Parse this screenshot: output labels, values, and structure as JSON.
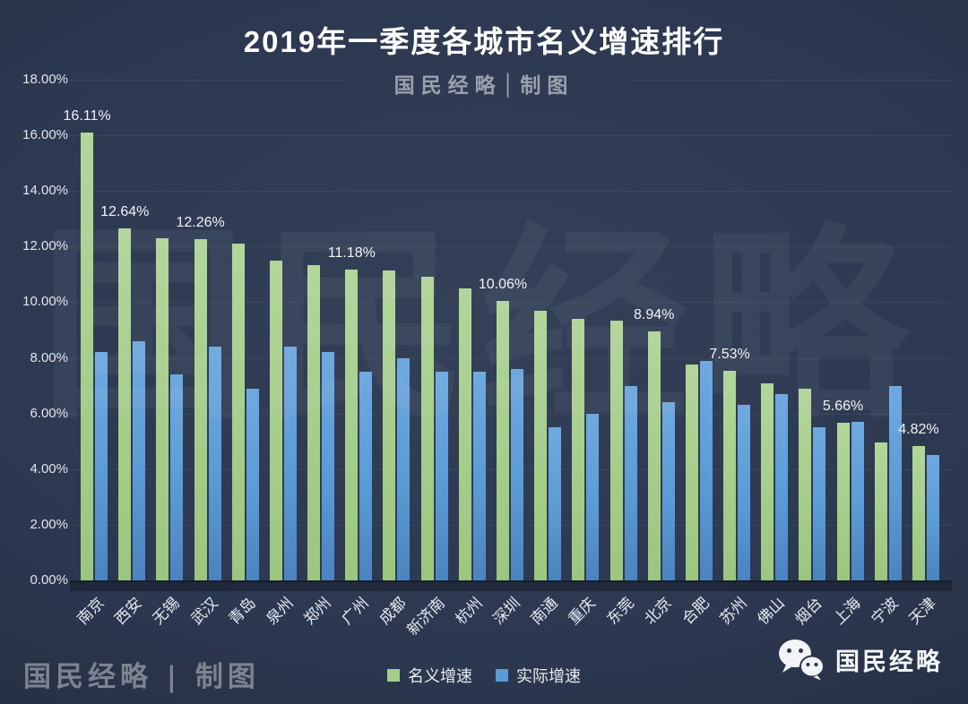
{
  "title": "2019年一季度各城市名义增速排行",
  "watermark_top": "国民经略│制图",
  "watermark_big": "国民经略",
  "watermark_bottom_left": "国民经略 | 制图",
  "brand": {
    "name": "国民经略",
    "icon": "wechat-icon"
  },
  "colors": {
    "background": "#2c3850",
    "nominal_green": "#a6ce8b",
    "actual_blue": "#5b9bd5",
    "gridline": "#3c4859",
    "text": "#e6eaf0"
  },
  "chart_data": {
    "type": "bar",
    "title": "2019年一季度各城市名义增速排行",
    "categories": [
      "南京",
      "西安",
      "无锡",
      "武汉",
      "青岛",
      "泉州",
      "郑州",
      "广州",
      "成都",
      "新济南",
      "杭州",
      "深圳",
      "南通",
      "重庆",
      "东莞",
      "北京",
      "合肥",
      "苏州",
      "佛山",
      "烟台",
      "上海",
      "宁波",
      "天津"
    ],
    "series": [
      {
        "name": "名义增速",
        "color": "#a6ce8b",
        "values": [
          16.11,
          12.64,
          12.3,
          12.26,
          12.1,
          11.5,
          11.35,
          11.18,
          11.15,
          10.9,
          10.5,
          10.06,
          9.7,
          9.4,
          9.35,
          8.94,
          7.75,
          7.53,
          7.1,
          6.9,
          5.66,
          4.95,
          4.82
        ]
      },
      {
        "name": "实际增速",
        "color": "#5b9bd5",
        "values": [
          8.2,
          8.6,
          7.4,
          8.4,
          6.9,
          8.4,
          8.2,
          7.5,
          8.0,
          7.5,
          7.5,
          7.6,
          5.5,
          6.0,
          7.0,
          6.4,
          7.9,
          6.3,
          6.7,
          5.5,
          5.7,
          7.0,
          4.5
        ]
      }
    ],
    "value_labels": [
      {
        "index": 0,
        "text": "16.11%"
      },
      {
        "index": 1,
        "text": "12.64%"
      },
      {
        "index": 3,
        "text": "12.26%"
      },
      {
        "index": 7,
        "text": "11.18%"
      },
      {
        "index": 11,
        "text": "10.06%"
      },
      {
        "index": 15,
        "text": "8.94%"
      },
      {
        "index": 17,
        "text": "7.53%"
      },
      {
        "index": 20,
        "text": "5.66%"
      },
      {
        "index": 22,
        "text": "4.82%"
      }
    ],
    "y_ticks": [
      "0.00%",
      "2.00%",
      "4.00%",
      "6.00%",
      "8.00%",
      "10.00%",
      "12.00%",
      "14.00%",
      "16.00%",
      "18.00%"
    ],
    "ylim": [
      0,
      18
    ],
    "grid": true,
    "legend_position": "bottom"
  }
}
